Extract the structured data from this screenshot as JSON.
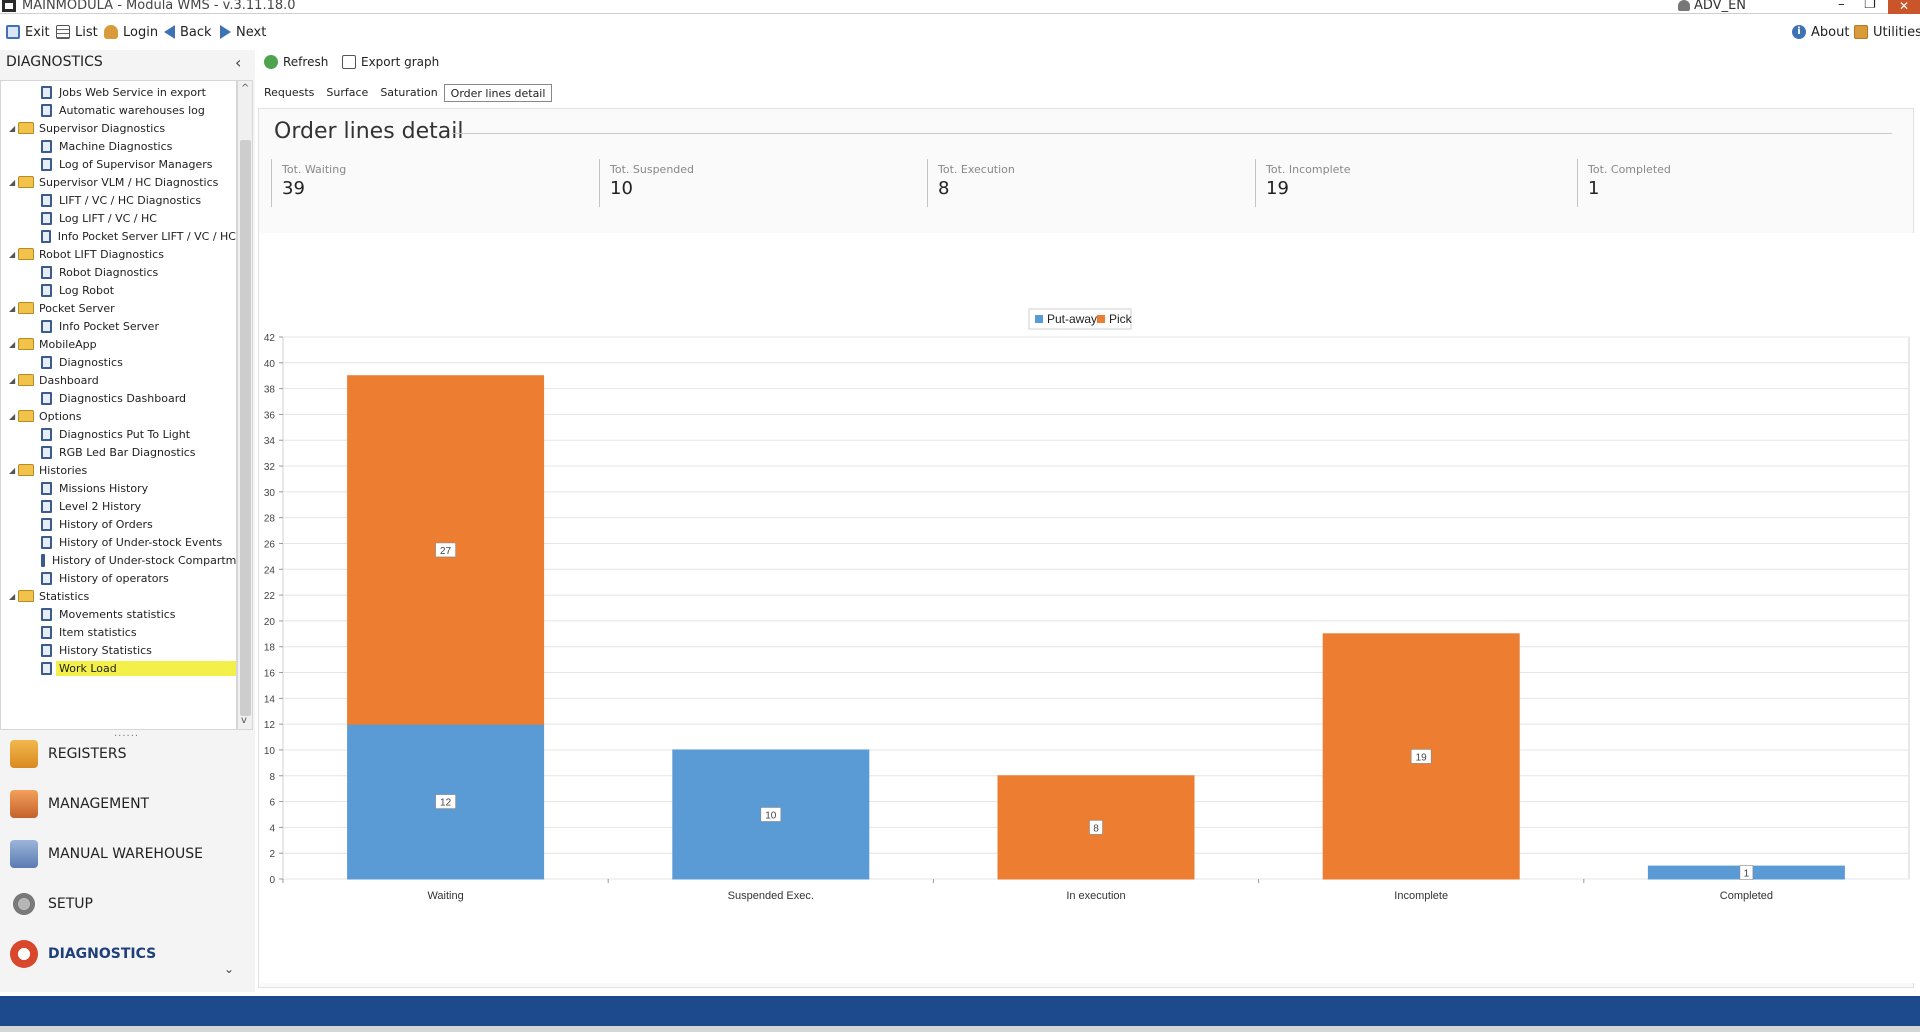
{
  "window": {
    "title": "MAINMODULA - Modula WMS - v.3.11.18.0",
    "user": "ADV_EN"
  },
  "toolbar": {
    "exit": "Exit",
    "list": "List",
    "login": "Login",
    "back": "Back",
    "next": "Next",
    "about": "About",
    "utilities": "Utilities"
  },
  "sidebar": {
    "header": "DIAGNOSTICS",
    "tree": [
      {
        "label": "Jobs Web Service in export",
        "type": "doc"
      },
      {
        "label": "Automatic warehouses log",
        "type": "doc"
      },
      {
        "label": "Supervisor Diagnostics",
        "type": "folder"
      },
      {
        "label": "Machine Diagnostics",
        "type": "doc"
      },
      {
        "label": "Log of Supervisor Managers",
        "type": "doc"
      },
      {
        "label": "Supervisor VLM / HC Diagnostics",
        "type": "folder"
      },
      {
        "label": "LIFT / VC / HC Diagnostics",
        "type": "doc"
      },
      {
        "label": "Log LIFT / VC / HC",
        "type": "doc"
      },
      {
        "label": "Info Pocket Server LIFT / VC / HC",
        "type": "doc"
      },
      {
        "label": "Robot LIFT Diagnostics",
        "type": "folder"
      },
      {
        "label": "Robot Diagnostics",
        "type": "doc"
      },
      {
        "label": "Log Robot",
        "type": "doc"
      },
      {
        "label": "Pocket Server",
        "type": "folder"
      },
      {
        "label": "Info Pocket Server",
        "type": "doc"
      },
      {
        "label": "MobileApp",
        "type": "folder"
      },
      {
        "label": "Diagnostics",
        "type": "doc"
      },
      {
        "label": "Dashboard",
        "type": "folder"
      },
      {
        "label": "Diagnostics Dashboard",
        "type": "doc"
      },
      {
        "label": "Options",
        "type": "folder"
      },
      {
        "label": "Diagnostics Put To Light",
        "type": "doc"
      },
      {
        "label": "RGB Led Bar Diagnostics",
        "type": "doc"
      },
      {
        "label": "Histories",
        "type": "folder"
      },
      {
        "label": "Missions History",
        "type": "doc"
      },
      {
        "label": "Level 2 History",
        "type": "doc"
      },
      {
        "label": "History of Orders",
        "type": "doc"
      },
      {
        "label": "History of Under-stock Events",
        "type": "doc"
      },
      {
        "label": "History of Under-stock Compartm...",
        "type": "doc"
      },
      {
        "label": "History of operators",
        "type": "doc"
      },
      {
        "label": "Statistics",
        "type": "folder"
      },
      {
        "label": "Movements statistics",
        "type": "doc"
      },
      {
        "label": "Item statistics",
        "type": "doc"
      },
      {
        "label": "History Statistics",
        "type": "doc"
      },
      {
        "label": "Work Load",
        "type": "doc",
        "selected": true
      }
    ],
    "nav": [
      {
        "label": "REGISTERS",
        "icon": "registers-icon"
      },
      {
        "label": "MANAGEMENT",
        "icon": "management-icon"
      },
      {
        "label": "MANUAL WAREHOUSE",
        "icon": "manual-warehouse-icon"
      },
      {
        "label": "SETUP",
        "icon": "setup-icon"
      },
      {
        "label": "DIAGNOSTICS",
        "icon": "diagnostics-icon",
        "active": true
      }
    ]
  },
  "subtoolbar": {
    "refresh": "Refresh",
    "export": "Export graph"
  },
  "tabs": [
    "Requests",
    "Surface",
    "Saturation",
    "Order lines detail"
  ],
  "active_tab": "Order lines detail",
  "panel": {
    "title": "Order lines detail",
    "kpis": [
      {
        "label": "Tot. Waiting",
        "value": "39"
      },
      {
        "label": "Tot. Suspended",
        "value": "10"
      },
      {
        "label": "Tot. Execution",
        "value": "8"
      },
      {
        "label": "Tot. Incomplete",
        "value": "19"
      },
      {
        "label": "Tot. Completed",
        "value": "1"
      }
    ]
  },
  "colors": {
    "putaway": "#5b9bd5",
    "pick": "#ed7d31",
    "statusbar": "#1d4a8c"
  },
  "chart_data": {
    "type": "bar",
    "stacked": true,
    "categories": [
      "Waiting",
      "Suspended Exec.",
      "In execution",
      "Incomplete",
      "Completed"
    ],
    "series": [
      {
        "name": "Put-away",
        "values": [
          12,
          10,
          0,
          0,
          1
        ]
      },
      {
        "name": "Pick",
        "values": [
          27,
          0,
          8,
          19,
          0
        ]
      }
    ],
    "ylim": [
      0,
      42
    ],
    "yticks": [
      0,
      2,
      4,
      6,
      8,
      10,
      12,
      14,
      16,
      18,
      20,
      22,
      24,
      26,
      28,
      30,
      32,
      34,
      36,
      38,
      40,
      42
    ],
    "grid": true,
    "legend": "top-center",
    "data_labels": true
  }
}
